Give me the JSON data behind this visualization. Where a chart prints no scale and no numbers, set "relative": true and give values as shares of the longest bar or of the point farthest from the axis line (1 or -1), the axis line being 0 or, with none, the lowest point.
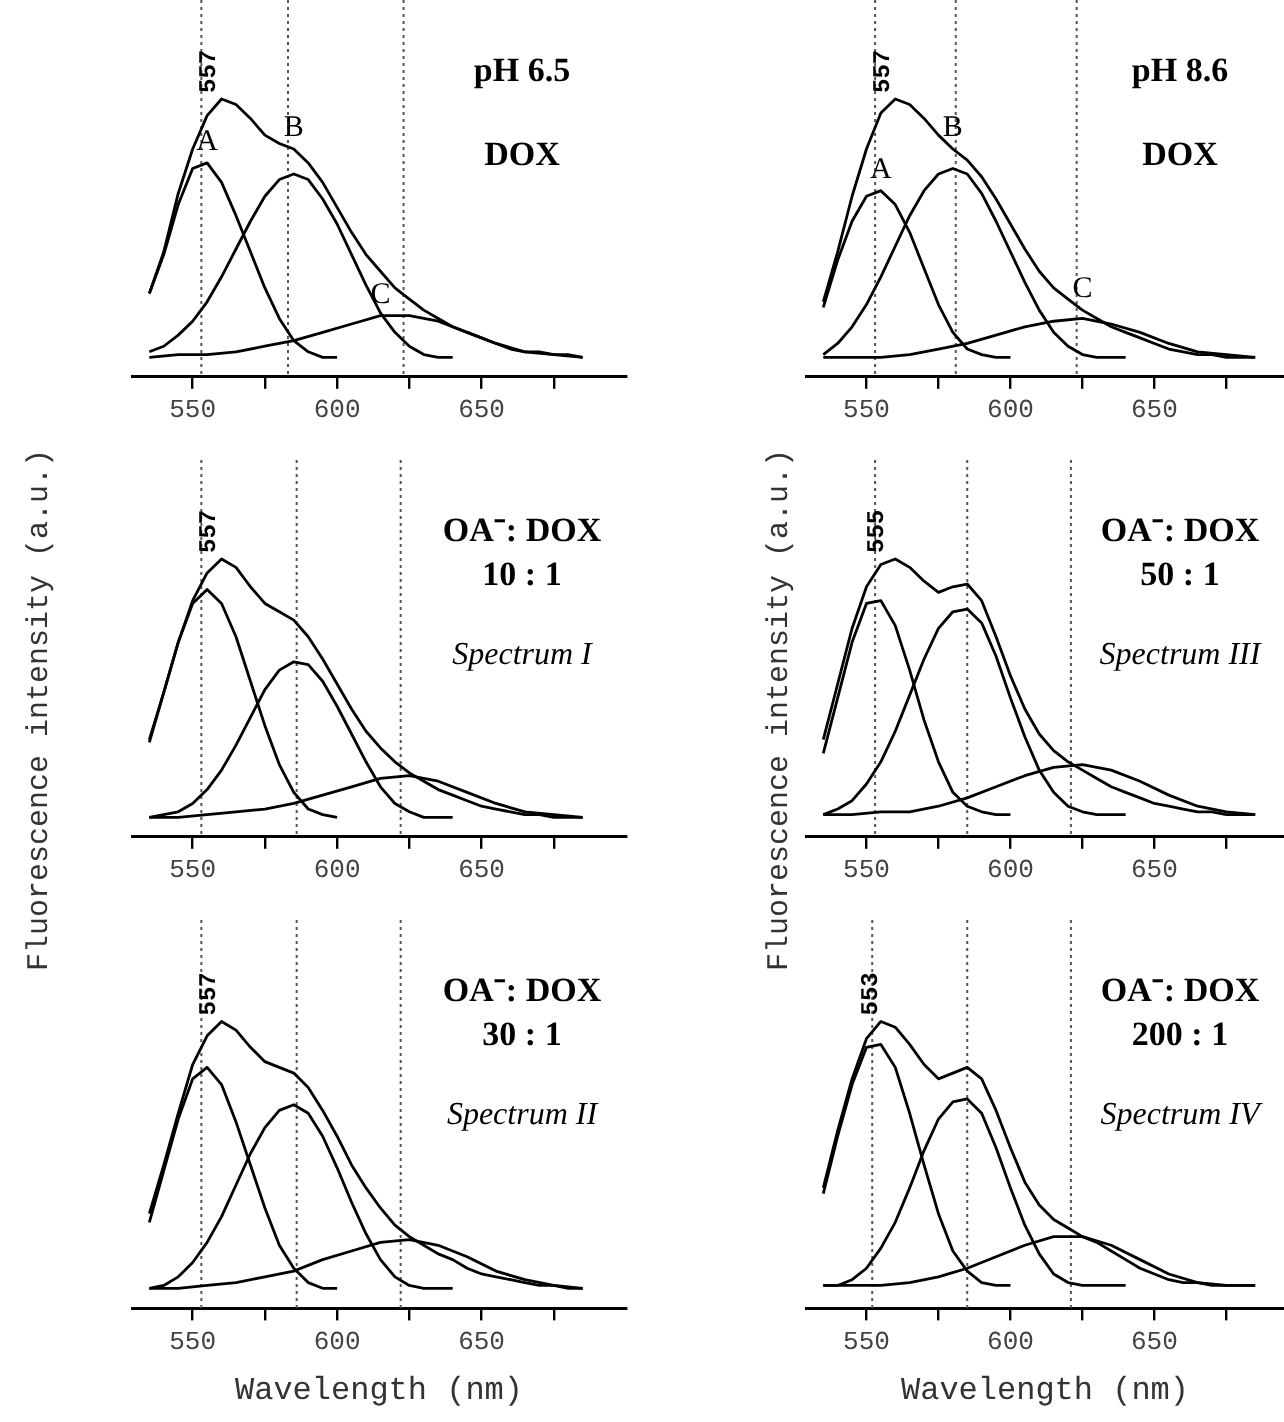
{
  "chart_data": [
    {
      "type": "line",
      "relative": true,
      "title": "pH 6.5",
      "subtitle": "DOX",
      "xlim": [
        529,
        700
      ],
      "xticks": [
        550,
        {
          "value": 575,
          "label": null
        },
        600,
        {
          "value": 625,
          "label": null
        },
        650,
        {
          "value": 675,
          "label": null
        }
      ],
      "marker": "none",
      "line_style": "solid",
      "series": [
        {
          "color": "#000000",
          "x": [
            535,
            540,
            545,
            550,
            555,
            560,
            565,
            570,
            575,
            580,
            585,
            590,
            595,
            600,
            605,
            610,
            615,
            620,
            625,
            630,
            635,
            640,
            645,
            650,
            655,
            660,
            665,
            670,
            675,
            680,
            685
          ],
          "values": [
            0.3,
            0.45,
            0.66,
            0.82,
            0.94,
            1.0,
            0.98,
            0.93,
            0.87,
            0.84,
            0.82,
            0.77,
            0.7,
            0.61,
            0.52,
            0.44,
            0.38,
            0.32,
            0.28,
            0.24,
            0.21,
            0.18,
            0.16,
            0.14,
            0.12,
            0.1,
            0.09,
            0.09,
            0.08,
            0.08,
            0.07
          ]
        },
        {
          "name": "A",
          "color": "#000000",
          "x": [
            535,
            540,
            545,
            550,
            555,
            560,
            565,
            570,
            575,
            580,
            585,
            590,
            595,
            600
          ],
          "values": [
            0.3,
            0.44,
            0.62,
            0.75,
            0.77,
            0.7,
            0.58,
            0.45,
            0.32,
            0.21,
            0.13,
            0.09,
            0.07,
            0.07
          ]
        },
        {
          "name": "B",
          "color": "#000000",
          "x": [
            535,
            540,
            545,
            550,
            555,
            560,
            565,
            570,
            575,
            580,
            585,
            590,
            595,
            600,
            605,
            610,
            615,
            620,
            625,
            630,
            635,
            640
          ],
          "values": [
            0.09,
            0.11,
            0.15,
            0.2,
            0.27,
            0.36,
            0.46,
            0.56,
            0.65,
            0.71,
            0.73,
            0.71,
            0.64,
            0.55,
            0.44,
            0.33,
            0.23,
            0.16,
            0.11,
            0.08,
            0.07,
            0.07
          ]
        },
        {
          "name": "C",
          "color": "#000000",
          "x": [
            535,
            545,
            555,
            565,
            575,
            585,
            595,
            605,
            615,
            625,
            635,
            645,
            655,
            665,
            675,
            685
          ],
          "values": [
            0.07,
            0.08,
            0.08,
            0.09,
            0.11,
            0.13,
            0.16,
            0.19,
            0.22,
            0.22,
            0.2,
            0.16,
            0.12,
            0.09,
            0.08,
            0.07
          ]
        }
      ],
      "ref_lines": [
        {
          "axis": "x",
          "value": 553,
          "color": "#555555",
          "line_style": "dotted"
        },
        {
          "axis": "x",
          "value": 583,
          "color": "#555555",
          "line_style": "dotted"
        },
        {
          "axis": "x",
          "value": 623,
          "color": "#555555",
          "line_style": "dotted"
        }
      ],
      "annotations": [
        {
          "text": "557",
          "x": 557,
          "y": 1.0
        }
      ]
    },
    {
      "type": "line",
      "relative": true,
      "title": "pH 8.6",
      "subtitle": "DOX",
      "xlim": [
        529,
        695
      ],
      "xticks": [
        550,
        {
          "value": 575,
          "label": null
        },
        600,
        {
          "value": 625,
          "label": null
        },
        650,
        {
          "value": 675,
          "label": null
        }
      ],
      "marker": "none",
      "line_style": "solid",
      "series": [
        {
          "color": "#000000",
          "x": [
            535,
            540,
            545,
            550,
            555,
            560,
            565,
            570,
            575,
            580,
            585,
            590,
            595,
            600,
            605,
            610,
            615,
            620,
            625,
            630,
            635,
            640,
            645,
            650,
            655,
            660,
            665,
            670,
            675,
            680,
            685
          ],
          "values": [
            0.27,
            0.45,
            0.65,
            0.82,
            0.95,
            1.0,
            0.98,
            0.93,
            0.87,
            0.82,
            0.78,
            0.72,
            0.64,
            0.55,
            0.46,
            0.38,
            0.32,
            0.28,
            0.24,
            0.21,
            0.18,
            0.16,
            0.14,
            0.12,
            0.1,
            0.09,
            0.08,
            0.08,
            0.07,
            0.07,
            0.07
          ]
        },
        {
          "name": "A",
          "color": "#000000",
          "x": [
            535,
            540,
            545,
            550,
            555,
            560,
            565,
            570,
            575,
            580,
            585,
            590,
            595,
            600
          ],
          "values": [
            0.25,
            0.42,
            0.56,
            0.65,
            0.67,
            0.62,
            0.52,
            0.39,
            0.26,
            0.16,
            0.1,
            0.08,
            0.07,
            0.07
          ]
        },
        {
          "name": "B",
          "color": "#000000",
          "x": [
            535,
            540,
            545,
            550,
            555,
            560,
            565,
            570,
            575,
            580,
            585,
            590,
            595,
            600,
            605,
            610,
            615,
            620,
            625,
            630,
            635,
            640
          ],
          "values": [
            0.08,
            0.12,
            0.18,
            0.26,
            0.36,
            0.47,
            0.58,
            0.67,
            0.73,
            0.75,
            0.73,
            0.66,
            0.56,
            0.45,
            0.34,
            0.24,
            0.16,
            0.11,
            0.08,
            0.07,
            0.07,
            0.07
          ]
        },
        {
          "name": "C",
          "color": "#000000",
          "x": [
            535,
            545,
            555,
            565,
            575,
            585,
            595,
            605,
            615,
            625,
            635,
            645,
            655,
            665,
            675,
            685
          ],
          "values": [
            0.07,
            0.07,
            0.07,
            0.08,
            0.1,
            0.12,
            0.15,
            0.18,
            0.2,
            0.21,
            0.19,
            0.16,
            0.12,
            0.09,
            0.08,
            0.07
          ]
        }
      ],
      "ref_lines": [
        {
          "axis": "x",
          "value": 553,
          "color": "#555555",
          "line_style": "dotted"
        },
        {
          "axis": "x",
          "value": 581,
          "color": "#555555",
          "line_style": "dotted"
        },
        {
          "axis": "x",
          "value": 623,
          "color": "#555555",
          "line_style": "dotted"
        }
      ],
      "annotations": [
        {
          "text": "557",
          "x": 557,
          "y": 1.0
        }
      ]
    },
    {
      "type": "line",
      "relative": true,
      "title": "OA⁻: DOX",
      "subtitle": "10 : 1",
      "ylabel": "Fluorescence intensity (a.u.)",
      "xlim": [
        529,
        700
      ],
      "xticks": [
        550,
        {
          "value": 575,
          "label": null
        },
        600,
        {
          "value": 625,
          "label": null
        },
        650,
        {
          "value": 675,
          "label": null
        }
      ],
      "marker": "none",
      "line_style": "solid",
      "series": [
        {
          "color": "#000000",
          "x": [
            535,
            540,
            545,
            550,
            555,
            560,
            565,
            570,
            575,
            580,
            585,
            590,
            595,
            600,
            605,
            610,
            615,
            620,
            625,
            630,
            635,
            640,
            645,
            650,
            655,
            660,
            665,
            670,
            675,
            680,
            685
          ],
          "values": [
            0.35,
            0.52,
            0.7,
            0.85,
            0.95,
            1.0,
            0.97,
            0.9,
            0.84,
            0.81,
            0.78,
            0.72,
            0.64,
            0.55,
            0.46,
            0.38,
            0.32,
            0.27,
            0.23,
            0.2,
            0.17,
            0.15,
            0.13,
            0.11,
            0.1,
            0.09,
            0.08,
            0.08,
            0.07,
            0.07,
            0.07
          ]
        },
        {
          "color": "#000000",
          "x": [
            535,
            540,
            545,
            550,
            555,
            560,
            565,
            570,
            575,
            580,
            585,
            590,
            595,
            600
          ],
          "values": [
            0.34,
            0.52,
            0.7,
            0.84,
            0.89,
            0.84,
            0.72,
            0.56,
            0.4,
            0.26,
            0.16,
            0.1,
            0.08,
            0.07
          ]
        },
        {
          "color": "#000000",
          "x": [
            535,
            540,
            545,
            550,
            555,
            560,
            565,
            570,
            575,
            580,
            585,
            590,
            595,
            600,
            605,
            610,
            615,
            620,
            625,
            630,
            635,
            640
          ],
          "values": [
            0.07,
            0.08,
            0.09,
            0.12,
            0.17,
            0.24,
            0.33,
            0.43,
            0.53,
            0.6,
            0.63,
            0.62,
            0.56,
            0.47,
            0.37,
            0.27,
            0.18,
            0.12,
            0.09,
            0.07,
            0.07,
            0.07
          ]
        },
        {
          "color": "#000000",
          "x": [
            535,
            545,
            555,
            565,
            575,
            585,
            595,
            605,
            615,
            625,
            635,
            645,
            655,
            665,
            675,
            685
          ],
          "values": [
            0.07,
            0.07,
            0.08,
            0.09,
            0.1,
            0.12,
            0.15,
            0.18,
            0.21,
            0.22,
            0.2,
            0.16,
            0.12,
            0.09,
            0.08,
            0.07
          ]
        }
      ],
      "ref_lines": [
        {
          "axis": "x",
          "value": 553,
          "color": "#555555",
          "line_style": "dotted"
        },
        {
          "axis": "x",
          "value": 586,
          "color": "#555555",
          "line_style": "dotted"
        },
        {
          "axis": "x",
          "value": 622,
          "color": "#555555",
          "line_style": "dotted"
        }
      ],
      "annotations": [
        {
          "text": "557",
          "x": 557,
          "y": 1.0
        },
        "Spectrum I"
      ]
    },
    {
      "type": "line",
      "relative": true,
      "title": "OA⁻: DOX",
      "subtitle": "50 : 1",
      "ylabel": "Fluorescence intensity (a.u.)",
      "xlim": [
        529,
        695
      ],
      "xticks": [
        550,
        {
          "value": 575,
          "label": null
        },
        600,
        {
          "value": 625,
          "label": null
        },
        650,
        {
          "value": 675,
          "label": null
        }
      ],
      "marker": "none",
      "line_style": "solid",
      "series": [
        {
          "color": "#000000",
          "x": [
            535,
            540,
            545,
            550,
            555,
            560,
            565,
            570,
            575,
            580,
            585,
            590,
            595,
            600,
            605,
            610,
            615,
            620,
            625,
            630,
            635,
            640,
            645,
            650,
            655,
            660,
            665,
            670,
            675,
            680,
            685
          ],
          "values": [
            0.35,
            0.55,
            0.75,
            0.9,
            0.98,
            1.0,
            0.97,
            0.92,
            0.88,
            0.9,
            0.91,
            0.85,
            0.72,
            0.58,
            0.46,
            0.37,
            0.31,
            0.27,
            0.24,
            0.21,
            0.18,
            0.16,
            0.14,
            0.12,
            0.11,
            0.1,
            0.09,
            0.09,
            0.08,
            0.08,
            0.08
          ]
        },
        {
          "color": "#000000",
          "x": [
            535,
            540,
            545,
            550,
            555,
            560,
            565,
            570,
            575,
            580,
            585,
            590,
            595,
            600
          ],
          "values": [
            0.3,
            0.5,
            0.7,
            0.84,
            0.85,
            0.76,
            0.6,
            0.42,
            0.27,
            0.16,
            0.11,
            0.09,
            0.08,
            0.08
          ]
        },
        {
          "color": "#000000",
          "x": [
            535,
            540,
            545,
            550,
            555,
            560,
            565,
            570,
            575,
            580,
            585,
            590,
            595,
            600,
            605,
            610,
            615,
            620,
            625,
            630,
            635,
            640
          ],
          "values": [
            0.08,
            0.1,
            0.13,
            0.19,
            0.27,
            0.38,
            0.51,
            0.64,
            0.75,
            0.81,
            0.82,
            0.77,
            0.65,
            0.5,
            0.36,
            0.24,
            0.16,
            0.11,
            0.09,
            0.08,
            0.08,
            0.08
          ]
        },
        {
          "color": "#000000",
          "x": [
            535,
            545,
            555,
            565,
            575,
            585,
            595,
            605,
            615,
            625,
            635,
            645,
            655,
            665,
            675,
            685
          ],
          "values": [
            0.08,
            0.08,
            0.09,
            0.09,
            0.11,
            0.14,
            0.18,
            0.22,
            0.25,
            0.26,
            0.24,
            0.2,
            0.15,
            0.11,
            0.09,
            0.08
          ]
        }
      ],
      "ref_lines": [
        {
          "axis": "x",
          "value": 553,
          "color": "#555555",
          "line_style": "dotted"
        },
        {
          "axis": "x",
          "value": 585,
          "color": "#555555",
          "line_style": "dotted"
        },
        {
          "axis": "x",
          "value": 621,
          "color": "#555555",
          "line_style": "dotted"
        }
      ],
      "annotations": [
        {
          "text": "555",
          "x": 555,
          "y": 1.0
        },
        "Spectrum III"
      ]
    },
    {
      "type": "line",
      "relative": true,
      "title": "OA⁻: DOX",
      "subtitle": "30 : 1",
      "xlabel": "Wavelength (nm)",
      "xlim": [
        529,
        700
      ],
      "xticks": [
        550,
        {
          "value": 575,
          "label": null
        },
        600,
        {
          "value": 625,
          "label": null
        },
        650,
        {
          "value": 675,
          "label": null
        }
      ],
      "marker": "none",
      "line_style": "solid",
      "series": [
        {
          "color": "#000000",
          "x": [
            535,
            540,
            545,
            550,
            555,
            560,
            565,
            570,
            575,
            580,
            585,
            590,
            595,
            600,
            605,
            610,
            615,
            620,
            625,
            630,
            635,
            640,
            645,
            650,
            655,
            660,
            665,
            670,
            675,
            680,
            685
          ],
          "values": [
            0.33,
            0.5,
            0.68,
            0.85,
            0.95,
            1.0,
            0.97,
            0.91,
            0.86,
            0.84,
            0.82,
            0.77,
            0.69,
            0.6,
            0.5,
            0.42,
            0.35,
            0.29,
            0.25,
            0.22,
            0.19,
            0.17,
            0.14,
            0.12,
            0.11,
            0.1,
            0.09,
            0.08,
            0.08,
            0.07,
            0.07
          ]
        },
        {
          "color": "#000000",
          "x": [
            535,
            540,
            545,
            550,
            555,
            560,
            565,
            570,
            575,
            580,
            585,
            590,
            595,
            600
          ],
          "values": [
            0.3,
            0.48,
            0.66,
            0.8,
            0.84,
            0.78,
            0.65,
            0.5,
            0.35,
            0.22,
            0.14,
            0.09,
            0.07,
            0.07
          ]
        },
        {
          "color": "#000000",
          "x": [
            535,
            540,
            545,
            550,
            555,
            560,
            565,
            570,
            575,
            580,
            585,
            590,
            595,
            600,
            605,
            610,
            615,
            620,
            625,
            630,
            635,
            640
          ],
          "values": [
            0.07,
            0.08,
            0.11,
            0.16,
            0.23,
            0.32,
            0.43,
            0.54,
            0.63,
            0.69,
            0.71,
            0.68,
            0.6,
            0.49,
            0.37,
            0.26,
            0.17,
            0.11,
            0.08,
            0.07,
            0.07,
            0.07
          ]
        },
        {
          "color": "#000000",
          "x": [
            535,
            545,
            555,
            565,
            575,
            585,
            595,
            605,
            615,
            625,
            635,
            645,
            655,
            665,
            675,
            685
          ],
          "values": [
            0.07,
            0.07,
            0.08,
            0.09,
            0.11,
            0.13,
            0.17,
            0.2,
            0.23,
            0.24,
            0.22,
            0.18,
            0.13,
            0.1,
            0.08,
            0.07
          ]
        }
      ],
      "ref_lines": [
        {
          "axis": "x",
          "value": 553,
          "color": "#555555",
          "line_style": "dotted"
        },
        {
          "axis": "x",
          "value": 586,
          "color": "#555555",
          "line_style": "dotted"
        },
        {
          "axis": "x",
          "value": 622,
          "color": "#555555",
          "line_style": "dotted"
        }
      ],
      "annotations": [
        {
          "text": "557",
          "x": 557,
          "y": 1.0
        },
        "Spectrum II"
      ]
    },
    {
      "type": "line",
      "relative": true,
      "title": "OA⁻: DOX",
      "subtitle": "200 : 1",
      "xlabel": "Wavelength (nm)",
      "xlim": [
        529,
        695
      ],
      "xticks": [
        550,
        {
          "value": 575,
          "label": null
        },
        600,
        {
          "value": 625,
          "label": null
        },
        650,
        {
          "value": 675,
          "label": null
        }
      ],
      "marker": "none",
      "line_style": "solid",
      "series": [
        {
          "color": "#000000",
          "x": [
            535,
            540,
            545,
            550,
            555,
            560,
            565,
            570,
            575,
            580,
            585,
            590,
            595,
            600,
            605,
            610,
            615,
            620,
            625,
            630,
            635,
            640,
            645,
            650,
            655,
            660,
            665,
            670,
            675,
            680,
            685
          ],
          "values": [
            0.42,
            0.62,
            0.8,
            0.94,
            1.0,
            0.98,
            0.92,
            0.85,
            0.8,
            0.82,
            0.84,
            0.8,
            0.69,
            0.56,
            0.44,
            0.36,
            0.31,
            0.28,
            0.25,
            0.23,
            0.2,
            0.17,
            0.14,
            0.12,
            0.1,
            0.09,
            0.09,
            0.08,
            0.08,
            0.08,
            0.08
          ]
        },
        {
          "color": "#000000",
          "x": [
            535,
            540,
            545,
            550,
            555,
            560,
            565,
            570,
            575,
            580,
            585,
            590,
            595,
            600
          ],
          "values": [
            0.4,
            0.6,
            0.78,
            0.91,
            0.92,
            0.84,
            0.68,
            0.5,
            0.33,
            0.2,
            0.13,
            0.09,
            0.08,
            0.08
          ]
        },
        {
          "color": "#000000",
          "x": [
            535,
            540,
            545,
            550,
            555,
            560,
            565,
            570,
            575,
            580,
            585,
            590,
            595,
            600,
            605,
            610,
            615,
            620,
            625,
            630,
            635,
            640
          ],
          "values": [
            0.08,
            0.08,
            0.1,
            0.14,
            0.21,
            0.3,
            0.42,
            0.55,
            0.66,
            0.72,
            0.73,
            0.68,
            0.56,
            0.42,
            0.29,
            0.19,
            0.12,
            0.09,
            0.08,
            0.08,
            0.08,
            0.08
          ]
        },
        {
          "color": "#000000",
          "x": [
            535,
            545,
            555,
            565,
            575,
            585,
            595,
            605,
            615,
            625,
            635,
            645,
            655,
            665,
            675,
            685
          ],
          "values": [
            0.08,
            0.08,
            0.08,
            0.09,
            0.11,
            0.14,
            0.18,
            0.22,
            0.25,
            0.25,
            0.22,
            0.17,
            0.12,
            0.09,
            0.08,
            0.08
          ]
        }
      ],
      "ref_lines": [
        {
          "axis": "x",
          "value": 552,
          "color": "#555555",
          "line_style": "dotted"
        },
        {
          "axis": "x",
          "value": 585,
          "color": "#555555",
          "line_style": "dotted"
        },
        {
          "axis": "x",
          "value": 621,
          "color": "#555555",
          "line_style": "dotted"
        }
      ],
      "annotations": [
        {
          "text": "553",
          "x": 553,
          "y": 1.0
        },
        "Spectrum IV"
      ]
    }
  ]
}
